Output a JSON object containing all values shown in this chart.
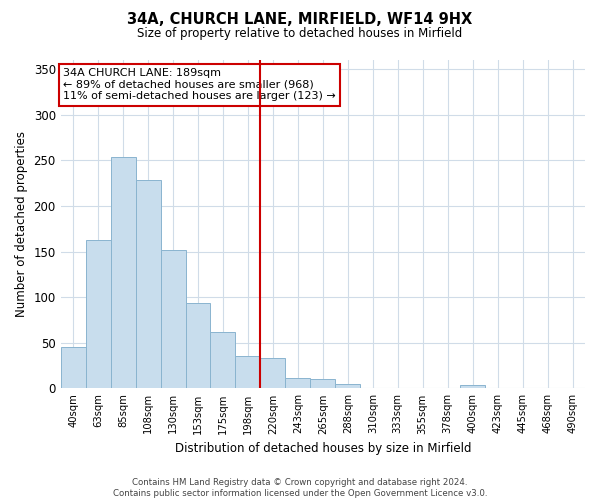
{
  "title": "34A, CHURCH LANE, MIRFIELD, WF14 9HX",
  "subtitle": "Size of property relative to detached houses in Mirfield",
  "xlabel": "Distribution of detached houses by size in Mirfield",
  "ylabel": "Number of detached properties",
  "bar_labels": [
    "40sqm",
    "63sqm",
    "85sqm",
    "108sqm",
    "130sqm",
    "153sqm",
    "175sqm",
    "198sqm",
    "220sqm",
    "243sqm",
    "265sqm",
    "288sqm",
    "310sqm",
    "333sqm",
    "355sqm",
    "378sqm",
    "400sqm",
    "423sqm",
    "445sqm",
    "468sqm",
    "490sqm"
  ],
  "bar_heights": [
    45,
    163,
    254,
    229,
    152,
    94,
    62,
    35,
    33,
    11,
    10,
    5,
    1,
    1,
    0,
    0,
    4,
    0,
    1,
    0,
    1
  ],
  "bar_color": "#c8dded",
  "bar_edge_color": "#8ab4cf",
  "vline_x_index": 7,
  "vline_color": "#cc0000",
  "ylim": [
    0,
    360
  ],
  "yticks": [
    0,
    50,
    100,
    150,
    200,
    250,
    300,
    350
  ],
  "annotation_title": "34A CHURCH LANE: 189sqm",
  "annotation_line1": "← 89% of detached houses are smaller (968)",
  "annotation_line2": "11% of semi-detached houses are larger (123) →",
  "annotation_box_color": "#ffffff",
  "annotation_box_edge": "#cc0000",
  "footer_line1": "Contains HM Land Registry data © Crown copyright and database right 2024.",
  "footer_line2": "Contains public sector information licensed under the Open Government Licence v3.0.",
  "background_color": "#ffffff",
  "grid_color": "#d0dce8"
}
